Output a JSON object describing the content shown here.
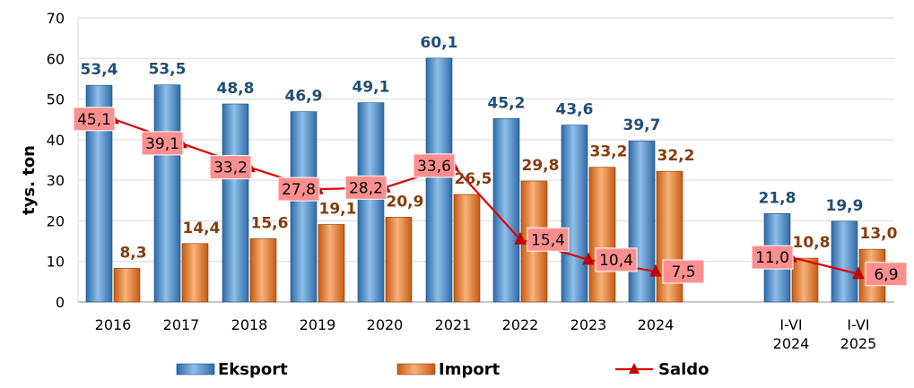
{
  "chart_data": {
    "type": "bar",
    "ylabel": "tys. ton",
    "ylim": [
      0,
      70
    ],
    "yticks": [
      0,
      10,
      20,
      30,
      40,
      50,
      60,
      70
    ],
    "grid": true,
    "legend_position": "bottom",
    "categories": [
      [
        "2016"
      ],
      [
        "2017"
      ],
      [
        "2018"
      ],
      [
        "2019"
      ],
      [
        "2020"
      ],
      [
        "2021"
      ],
      [
        "2022"
      ],
      [
        "2023"
      ],
      [
        "2024"
      ],
      [
        "I-VI",
        "2024"
      ],
      [
        "I-VI",
        "2025"
      ]
    ],
    "series": [
      {
        "name": "Eksport",
        "type": "bar",
        "color": "#5b9bd5",
        "values": [
          53.4,
          53.5,
          48.8,
          46.9,
          49.1,
          60.1,
          45.2,
          43.6,
          39.7,
          21.8,
          19.9
        ],
        "labels": [
          "53,4",
          "53,5",
          "48,8",
          "46,9",
          "49,1",
          "60,1",
          "45,2",
          "43,6",
          "39,7",
          "21,8",
          "19,9"
        ]
      },
      {
        "name": "Import",
        "type": "bar",
        "color": "#ed7d31",
        "values": [
          8.3,
          14.4,
          15.6,
          19.1,
          20.9,
          26.5,
          29.8,
          33.2,
          32.2,
          10.8,
          13.0
        ],
        "labels": [
          "8,3",
          "14,4",
          "15,6",
          "19,1",
          "20,9",
          "26,5",
          "29,8",
          "33,2",
          "32,2",
          "10,8",
          "13,0"
        ]
      },
      {
        "name": "Saldo",
        "type": "line",
        "color": "#e00000",
        "values": [
          45.1,
          39.1,
          33.2,
          27.8,
          28.2,
          33.6,
          15.4,
          10.4,
          7.5,
          11.0,
          6.9
        ],
        "labels": [
          "45,1",
          "39,1",
          "33,2",
          "27,8",
          "28,2",
          "33,6",
          "15,4",
          "10,4",
          "7,5",
          "11,0",
          "6,9"
        ]
      }
    ]
  }
}
